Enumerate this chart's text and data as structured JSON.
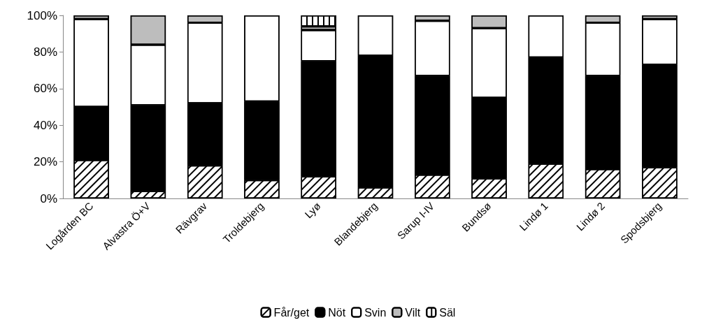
{
  "chart_data": {
    "type": "bar",
    "stacked": true,
    "categories": [
      "Logården BC",
      "Alvastra Ö+V",
      "Rävgrav",
      "Troldebjerg",
      "Lyø",
      "Blandebjerg",
      "Sarup I-IV",
      "Bundsø",
      "Lindø 1",
      "Lindø 2",
      "Spodsbjerg"
    ],
    "series": [
      {
        "name": "Får/get",
        "color": "#ffffff",
        "values": [
          21,
          4,
          18,
          10,
          12,
          6,
          13,
          11,
          19,
          16,
          17
        ]
      },
      {
        "name": "Nöt",
        "color": "#000000",
        "values": [
          29,
          47,
          34,
          43,
          63,
          72,
          54,
          44,
          58,
          51,
          56
        ]
      },
      {
        "name": "Svin",
        "color": "#ffffff",
        "values": [
          48,
          33,
          44,
          47,
          17,
          22,
          30,
          38,
          23,
          29,
          25
        ]
      },
      {
        "name": "Vilt",
        "color": "#bdbdbd",
        "values": [
          2,
          16,
          4,
          null,
          2,
          null,
          3,
          7,
          null,
          4,
          2
        ]
      },
      {
        "name": "Säl",
        "color": "#ffffff",
        "values": [
          null,
          null,
          null,
          null,
          6,
          null,
          null,
          null,
          null,
          null,
          null
        ]
      }
    ],
    "ylim": [
      0,
      100
    ],
    "yticks": [
      {
        "value": 0,
        "label": "0%"
      },
      {
        "value": 20,
        "label": "20%"
      },
      {
        "value": 40,
        "label": "40%"
      },
      {
        "value": 60,
        "label": "60%"
      },
      {
        "value": 80,
        "label": "80%"
      },
      {
        "value": 100,
        "label": "100%"
      }
    ],
    "grid": false,
    "legend": "bottom"
  }
}
